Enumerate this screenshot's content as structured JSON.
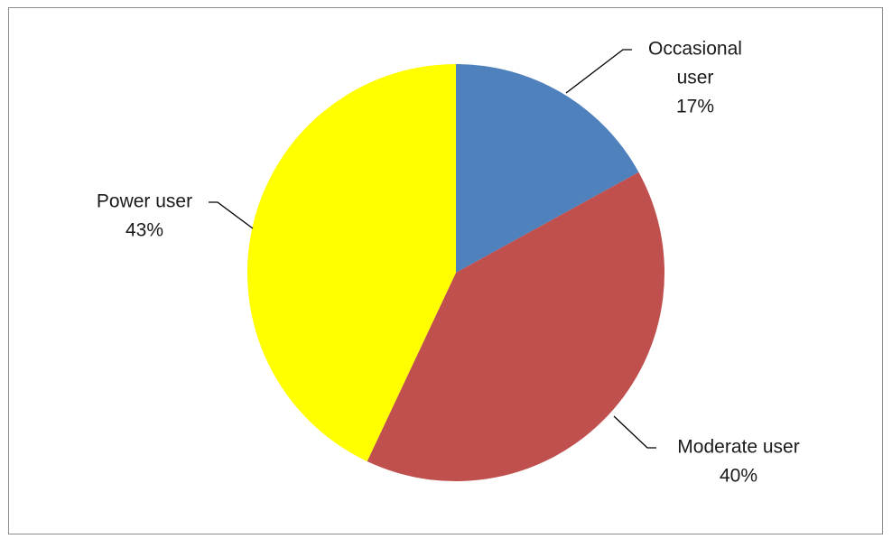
{
  "chart_data": {
    "type": "pie",
    "title": "",
    "start_angle_deg": 0,
    "direction": "clockwise",
    "legend": "none",
    "slices": [
      {
        "label_lines": [
          "Occasional",
          "user"
        ],
        "value": 17,
        "value_label": "17%",
        "color": "#4f81bd"
      },
      {
        "label_lines": [
          "Moderate user"
        ],
        "value": 40,
        "value_label": "40%",
        "color": "#c0504d"
      },
      {
        "label_lines": [
          "Power user"
        ],
        "value": 43,
        "value_label": "43%",
        "color": "#ffff00"
      }
    ]
  }
}
